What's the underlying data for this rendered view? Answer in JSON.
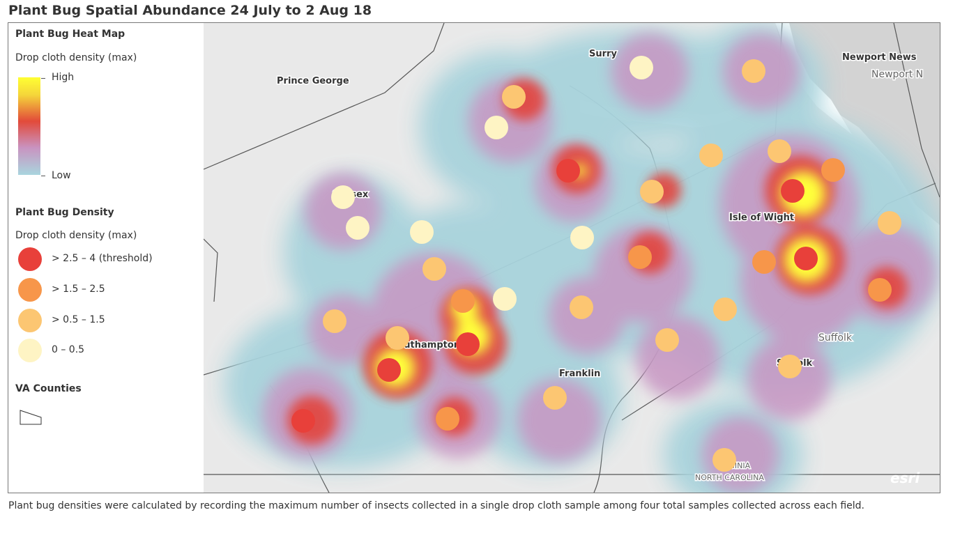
{
  "title": "Plant Bug Spatial Abundance 24 July to 2 Aug 18",
  "legend": {
    "heatmap_title": "Plant Bug Heat Map",
    "heatmap_subtitle": "Drop cloth density (max)",
    "ramp_high": "High",
    "ramp_low": "Low",
    "density_title": "Plant Bug Density",
    "density_subtitle": "Drop cloth density (max)",
    "classes": [
      {
        "label": "> 2.5 – 4 (threshold)",
        "color": "#e8403a"
      },
      {
        "label": "> 1.5 – 2.5",
        "color": "#f7964a"
      },
      {
        "label": "> 0.5 – 1.5",
        "color": "#fcc672"
      },
      {
        "label": "0 – 0.5",
        "color": "#fef4c4"
      }
    ],
    "counties_title": "VA Counties",
    "county_symbol": "polygon-outline-icon"
  },
  "places": {
    "surry": "Surry",
    "newport_news": "Newport News",
    "newport_news_faint": "Newport N",
    "prince_george": "Prince George",
    "sussex": "Sussex",
    "isle_of_wight": "Isle of Wight",
    "southampton": "Southampton",
    "franklin": "Franklin",
    "suffolk_city": "Suffolk",
    "suffolk_county": "Suffolk",
    "virginia": "VIRGINIA",
    "north_carolina": "NORTH CAROLINA"
  },
  "attribution": "esri",
  "caption": "Plant bug densities were calculated by recording the maximum number of insects collected in a single drop cloth sample among four total samples collected across each field."
}
